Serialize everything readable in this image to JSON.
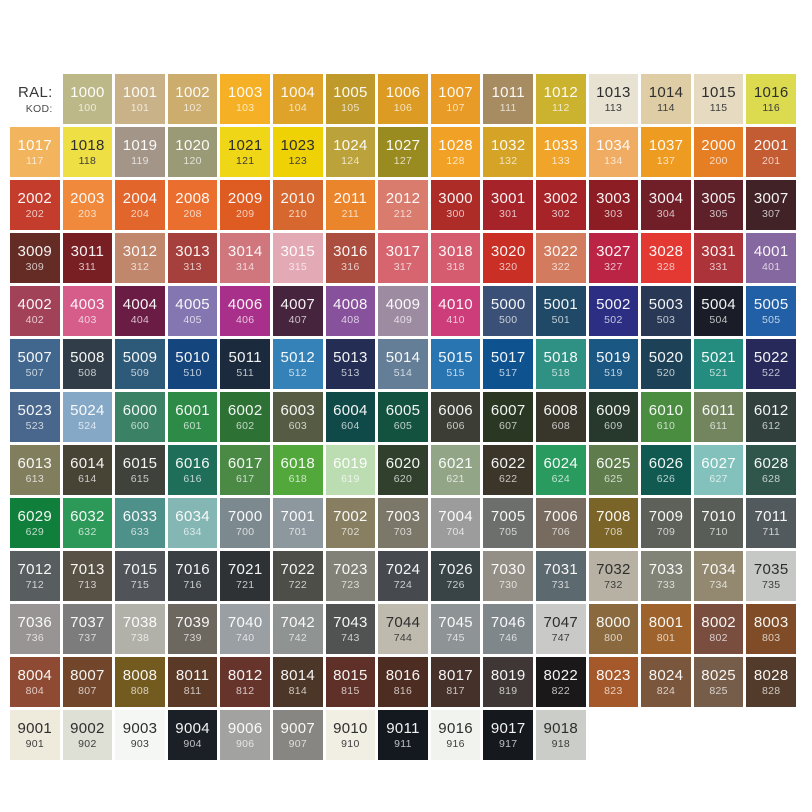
{
  "page": {
    "background": "#FFFFFF",
    "description": "RAL classic color chart with KOD codes"
  },
  "header": {
    "ral_label": "RAL:",
    "kod_label": "KOD:"
  },
  "text_colors": {
    "light": "#FFFFFF",
    "dark": "#2E2E2E"
  },
  "grid": {
    "columns": 15,
    "cells": [
      {
        "ral": "1000",
        "kod": "100",
        "hex": "#BDB888"
      },
      {
        "ral": "1001",
        "kod": "101",
        "hex": "#C9B287"
      },
      {
        "ral": "1002",
        "kod": "102",
        "hex": "#CCAD6E"
      },
      {
        "ral": "1003",
        "kod": "103",
        "hex": "#F5B025"
      },
      {
        "ral": "1004",
        "kod": "104",
        "hex": "#DFA32A"
      },
      {
        "ral": "1005",
        "kod": "105",
        "hex": "#C0992B"
      },
      {
        "ral": "1006",
        "kod": "106",
        "hex": "#DC9B22"
      },
      {
        "ral": "1007",
        "kod": "107",
        "hex": "#E89C27"
      },
      {
        "ral": "1011",
        "kod": "111",
        "hex": "#A78B61"
      },
      {
        "ral": "1012",
        "kod": "112",
        "hex": "#CBB32F"
      },
      {
        "ral": "1013",
        "kod": "113",
        "hex": "#E7E2D2",
        "dark": true
      },
      {
        "ral": "1014",
        "kod": "114",
        "hex": "#DECDA5",
        "dark": true
      },
      {
        "ral": "1015",
        "kod": "115",
        "hex": "#E6DAC0",
        "dark": true
      },
      {
        "ral": "1016",
        "kod": "116",
        "hex": "#DCDB50",
        "dark": true
      },
      {
        "ral": "1017",
        "kod": "117",
        "hex": "#F2B45C"
      },
      {
        "ral": "1018",
        "kod": "118",
        "hex": "#EEDF45",
        "dark": true
      },
      {
        "ral": "1019",
        "kod": "119",
        "hex": "#A39587"
      },
      {
        "ral": "1020",
        "kod": "120",
        "hex": "#9A9B76"
      },
      {
        "ral": "1021",
        "kod": "121",
        "hex": "#EFD616",
        "dark": true
      },
      {
        "ral": "1023",
        "kod": "123",
        "hex": "#EFD205",
        "dark": true
      },
      {
        "ral": "1024",
        "kod": "124",
        "hex": "#BCA23B"
      },
      {
        "ral": "1027",
        "kod": "127",
        "hex": "#9A8B20"
      },
      {
        "ral": "1028",
        "kod": "128",
        "hex": "#F2A127"
      },
      {
        "ral": "1032",
        "kod": "132",
        "hex": "#D5A326"
      },
      {
        "ral": "1033",
        "kod": "133",
        "hex": "#F0A42A"
      },
      {
        "ral": "1034",
        "kod": "134",
        "hex": "#F0AC62"
      },
      {
        "ral": "1037",
        "kod": "137",
        "hex": "#EE9C21"
      },
      {
        "ral": "2000",
        "kod": "200",
        "hex": "#E67E24"
      },
      {
        "ral": "2001",
        "kod": "201",
        "hex": "#C45C33"
      },
      {
        "ral": "2002",
        "kod": "202",
        "hex": "#C43C2C"
      },
      {
        "ral": "2003",
        "kod": "203",
        "hex": "#F1893C"
      },
      {
        "ral": "2004",
        "kod": "204",
        "hex": "#E2652C"
      },
      {
        "ral": "2008",
        "kod": "208",
        "hex": "#EA6E2E"
      },
      {
        "ral": "2009",
        "kod": "209",
        "hex": "#DE5B21"
      },
      {
        "ral": "2010",
        "kod": "210",
        "hex": "#D6682F"
      },
      {
        "ral": "2011",
        "kod": "211",
        "hex": "#EA852B"
      },
      {
        "ral": "2012",
        "kod": "212",
        "hex": "#DA7C6D"
      },
      {
        "ral": "3000",
        "kod": "300",
        "hex": "#AD2C28"
      },
      {
        "ral": "3001",
        "kod": "301",
        "hex": "#A52329"
      },
      {
        "ral": "3002",
        "kod": "302",
        "hex": "#A62327"
      },
      {
        "ral": "3003",
        "kod": "303",
        "hex": "#8C1D24"
      },
      {
        "ral": "3004",
        "kod": "304",
        "hex": "#701F29"
      },
      {
        "ral": "3005",
        "kod": "305",
        "hex": "#5E2129"
      },
      {
        "ral": "3007",
        "kod": "307",
        "hex": "#412327"
      },
      {
        "ral": "3009",
        "kod": "309",
        "hex": "#652C25"
      },
      {
        "ral": "3011",
        "kod": "311",
        "hex": "#781F23"
      },
      {
        "ral": "3012",
        "kod": "312",
        "hex": "#C1876C"
      },
      {
        "ral": "3013",
        "kod": "313",
        "hex": "#A6403C"
      },
      {
        "ral": "3014",
        "kod": "314",
        "hex": "#D0767D"
      },
      {
        "ral": "3015",
        "kod": "315",
        "hex": "#E3A9B5"
      },
      {
        "ral": "3016",
        "kod": "316",
        "hex": "#AB4E3F"
      },
      {
        "ral": "3017",
        "kod": "317",
        "hex": "#D6656F"
      },
      {
        "ral": "3018",
        "kod": "318",
        "hex": "#D45C6E"
      },
      {
        "ral": "3020",
        "kod": "320",
        "hex": "#C92F24"
      },
      {
        "ral": "3022",
        "kod": "322",
        "hex": "#D37B5F"
      },
      {
        "ral": "3027",
        "kod": "327",
        "hex": "#BC2446"
      },
      {
        "ral": "3028",
        "kod": "328",
        "hex": "#E43833"
      },
      {
        "ral": "3031",
        "kod": "331",
        "hex": "#AC3339"
      },
      {
        "ral": "4001",
        "kod": "401",
        "hex": "#8668A0"
      },
      {
        "ral": "4002",
        "kod": "402",
        "hex": "#A24259"
      },
      {
        "ral": "4003",
        "kod": "403",
        "hex": "#D65C8A"
      },
      {
        "ral": "4004",
        "kod": "404",
        "hex": "#6A1C45"
      },
      {
        "ral": "4005",
        "kod": "405",
        "hex": "#8477B1"
      },
      {
        "ral": "4006",
        "kod": "406",
        "hex": "#A8308A"
      },
      {
        "ral": "4007",
        "kod": "407",
        "hex": "#47243D"
      },
      {
        "ral": "4008",
        "kod": "408",
        "hex": "#87519C"
      },
      {
        "ral": "4009",
        "kod": "409",
        "hex": "#9D8BA2"
      },
      {
        "ral": "4010",
        "kod": "410",
        "hex": "#CC3D7A"
      },
      {
        "ral": "5000",
        "kod": "500",
        "hex": "#3A5077"
      },
      {
        "ral": "5001",
        "kod": "501",
        "hex": "#1F4966"
      },
      {
        "ral": "5002",
        "kod": "502",
        "hex": "#2B2E83"
      },
      {
        "ral": "5003",
        "kod": "503",
        "hex": "#293855"
      },
      {
        "ral": "5004",
        "kod": "504",
        "hex": "#1A1D28"
      },
      {
        "ral": "5005",
        "kod": "505",
        "hex": "#2160A7"
      },
      {
        "ral": "5007",
        "kod": "507",
        "hex": "#42678E"
      },
      {
        "ral": "5008",
        "kod": "508",
        "hex": "#313D48"
      },
      {
        "ral": "5009",
        "kod": "509",
        "hex": "#2E5A79"
      },
      {
        "ral": "5010",
        "kod": "510",
        "hex": "#15457D"
      },
      {
        "ral": "5011",
        "kod": "511",
        "hex": "#1B2B3D"
      },
      {
        "ral": "5012",
        "kod": "512",
        "hex": "#3582B8"
      },
      {
        "ral": "5013",
        "kod": "513",
        "hex": "#242E54"
      },
      {
        "ral": "5014",
        "kod": "514",
        "hex": "#647E97"
      },
      {
        "ral": "5015",
        "kod": "515",
        "hex": "#2975B2"
      },
      {
        "ral": "5017",
        "kod": "517",
        "hex": "#0E5290"
      },
      {
        "ral": "5018",
        "kod": "518",
        "hex": "#2F9084"
      },
      {
        "ral": "5019",
        "kod": "519",
        "hex": "#1B5783"
      },
      {
        "ral": "5020",
        "kod": "520",
        "hex": "#1D4257"
      },
      {
        "ral": "5021",
        "kod": "521",
        "hex": "#258D7F"
      },
      {
        "ral": "5022",
        "kod": "522",
        "hex": "#28295B"
      },
      {
        "ral": "5023",
        "kod": "523",
        "hex": "#49678D"
      },
      {
        "ral": "5024",
        "kod": "524",
        "hex": "#85A8C6"
      },
      {
        "ral": "6000",
        "kod": "600",
        "hex": "#3A8165"
      },
      {
        "ral": "6001",
        "kod": "601",
        "hex": "#2E8B47"
      },
      {
        "ral": "6002",
        "kod": "602",
        "hex": "#2D7134"
      },
      {
        "ral": "6003",
        "kod": "603",
        "hex": "#555C43"
      },
      {
        "ral": "6004",
        "kod": "604",
        "hex": "#0F4A49"
      },
      {
        "ral": "6005",
        "kod": "605",
        "hex": "#13523F"
      },
      {
        "ral": "6006",
        "kod": "606",
        "hex": "#3C3D35"
      },
      {
        "ral": "6007",
        "kod": "607",
        "hex": "#293723"
      },
      {
        "ral": "6008",
        "kod": "608",
        "hex": "#38352B"
      },
      {
        "ral": "6009",
        "kod": "609",
        "hex": "#27392C"
      },
      {
        "ral": "6010",
        "kod": "610",
        "hex": "#4A8C40"
      },
      {
        "ral": "6011",
        "kod": "611",
        "hex": "#73855F"
      },
      {
        "ral": "6012",
        "kod": "612",
        "hex": "#31403C"
      },
      {
        "ral": "6013",
        "kod": "613",
        "hex": "#817E5E"
      },
      {
        "ral": "6014",
        "kod": "614",
        "hex": "#474335"
      },
      {
        "ral": "6015",
        "kod": "615",
        "hex": "#3E423B"
      },
      {
        "ral": "6016",
        "kod": "616",
        "hex": "#1E6E59"
      },
      {
        "ral": "6017",
        "kod": "617",
        "hex": "#4A8A44"
      },
      {
        "ral": "6018",
        "kod": "618",
        "hex": "#53A83B"
      },
      {
        "ral": "6019",
        "kod": "619",
        "hex": "#BCDCB2"
      },
      {
        "ral": "6020",
        "kod": "620",
        "hex": "#30402C"
      },
      {
        "ral": "6021",
        "kod": "621",
        "hex": "#92A687"
      },
      {
        "ral": "6022",
        "kod": "622",
        "hex": "#3B352A"
      },
      {
        "ral": "6024",
        "kod": "624",
        "hex": "#2A9B5F"
      },
      {
        "ral": "6025",
        "kod": "625",
        "hex": "#5F7C4D"
      },
      {
        "ral": "6026",
        "kod": "626",
        "hex": "#105A51"
      },
      {
        "ral": "6027",
        "kod": "627",
        "hex": "#83C2BC"
      },
      {
        "ral": "6028",
        "kod": "628",
        "hex": "#30554A"
      },
      {
        "ral": "6029",
        "kod": "629",
        "hex": "#117F3C"
      },
      {
        "ral": "6032",
        "kod": "632",
        "hex": "#2C9959"
      },
      {
        "ral": "6033",
        "kod": "633",
        "hex": "#4E908A"
      },
      {
        "ral": "6034",
        "kod": "634",
        "hex": "#84B6B3"
      },
      {
        "ral": "7000",
        "kod": "700",
        "hex": "#7C898F"
      },
      {
        "ral": "7001",
        "kod": "701",
        "hex": "#8D979E"
      },
      {
        "ral": "7002",
        "kod": "702",
        "hex": "#887F62"
      },
      {
        "ral": "7003",
        "kod": "703",
        "hex": "#7B7869"
      },
      {
        "ral": "7004",
        "kod": "704",
        "hex": "#9C9C9C"
      },
      {
        "ral": "7005",
        "kod": "705",
        "hex": "#6C6F6C"
      },
      {
        "ral": "7006",
        "kod": "706",
        "hex": "#776B5F"
      },
      {
        "ral": "7008",
        "kod": "708",
        "hex": "#7B6428"
      },
      {
        "ral": "7009",
        "kod": "709",
        "hex": "#5E6159"
      },
      {
        "ral": "7010",
        "kod": "710",
        "hex": "#595D57"
      },
      {
        "ral": "7011",
        "kod": "711",
        "hex": "#535A5E"
      },
      {
        "ral": "7012",
        "kod": "712",
        "hex": "#585E5F"
      },
      {
        "ral": "7013",
        "kod": "713",
        "hex": "#585145"
      },
      {
        "ral": "7015",
        "kod": "715",
        "hex": "#505459"
      },
      {
        "ral": "7016",
        "kod": "716",
        "hex": "#393F43"
      },
      {
        "ral": "7021",
        "kod": "721",
        "hex": "#2E3234"
      },
      {
        "ral": "7022",
        "kod": "722",
        "hex": "#4C4E47"
      },
      {
        "ral": "7023",
        "kod": "723",
        "hex": "#818177"
      },
      {
        "ral": "7024",
        "kod": "724",
        "hex": "#464A4F"
      },
      {
        "ral": "7026",
        "kod": "726",
        "hex": "#384446"
      },
      {
        "ral": "7030",
        "kod": "730",
        "hex": "#938F86"
      },
      {
        "ral": "7031",
        "kod": "731",
        "hex": "#5C696E"
      },
      {
        "ral": "7032",
        "kod": "732",
        "hex": "#B6B1A2",
        "dark": true
      },
      {
        "ral": "7033",
        "kod": "733",
        "hex": "#808375"
      },
      {
        "ral": "7034",
        "kod": "734",
        "hex": "#938970"
      },
      {
        "ral": "7035",
        "kod": "735",
        "hex": "#C6C8C5",
        "dark": true
      },
      {
        "ral": "7036",
        "kod": "736",
        "hex": "#989493"
      },
      {
        "ral": "7037",
        "kod": "737",
        "hex": "#7B7C7B"
      },
      {
        "ral": "7038",
        "kod": "738",
        "hex": "#B1B1AA"
      },
      {
        "ral": "7039",
        "kod": "739",
        "hex": "#6C675F"
      },
      {
        "ral": "7040",
        "kod": "740",
        "hex": "#999FA2"
      },
      {
        "ral": "7042",
        "kod": "742",
        "hex": "#8F9392"
      },
      {
        "ral": "7043",
        "kod": "743",
        "hex": "#505351"
      },
      {
        "ral": "7044",
        "kod": "744",
        "hex": "#BEBAAE",
        "dark": true
      },
      {
        "ral": "7045",
        "kod": "745",
        "hex": "#8E9396"
      },
      {
        "ral": "7046",
        "kod": "746",
        "hex": "#80878B"
      },
      {
        "ral": "7047",
        "kod": "747",
        "hex": "#C9C9C8",
        "dark": true
      },
      {
        "ral": "8000",
        "kod": "800",
        "hex": "#8A693F"
      },
      {
        "ral": "8001",
        "kod": "801",
        "hex": "#9E632C"
      },
      {
        "ral": "8002",
        "kod": "802",
        "hex": "#7A4E3F"
      },
      {
        "ral": "8003",
        "kod": "803",
        "hex": "#7F4C27"
      },
      {
        "ral": "8004",
        "kod": "804",
        "hex": "#8E4A32"
      },
      {
        "ral": "8007",
        "kod": "807",
        "hex": "#71462B"
      },
      {
        "ral": "8008",
        "kod": "808",
        "hex": "#735A1F"
      },
      {
        "ral": "8011",
        "kod": "811",
        "hex": "#5B3927"
      },
      {
        "ral": "8012",
        "kod": "812",
        "hex": "#67342C"
      },
      {
        "ral": "8014",
        "kod": "814",
        "hex": "#4B3627"
      },
      {
        "ral": "8015",
        "kod": "815",
        "hex": "#5F3027"
      },
      {
        "ral": "8016",
        "kod": "816",
        "hex": "#4D2C21"
      },
      {
        "ral": "8017",
        "kod": "817",
        "hex": "#45302A"
      },
      {
        "ral": "8019",
        "kod": "819",
        "hex": "#3E3736"
      },
      {
        "ral": "8022",
        "kod": "822",
        "hex": "#1B1819"
      },
      {
        "ral": "8023",
        "kod": "823",
        "hex": "#A5582A"
      },
      {
        "ral": "8024",
        "kod": "824",
        "hex": "#7A563D"
      },
      {
        "ral": "8025",
        "kod": "825",
        "hex": "#765D49"
      },
      {
        "ral": "8028",
        "kod": "828",
        "hex": "#523B2B"
      },
      {
        "ral": "9001",
        "kod": "901",
        "hex": "#EFEBDC",
        "dark": true
      },
      {
        "ral": "9002",
        "kod": "902",
        "hex": "#DEDFD5",
        "dark": true
      },
      {
        "ral": "9003",
        "kod": "903",
        "hex": "#F4F7F4",
        "dark": true
      },
      {
        "ral": "9004",
        "kod": "904",
        "hex": "#1B1F26"
      },
      {
        "ral": "9006",
        "kod": "906",
        "hex": "#A2A2A1"
      },
      {
        "ral": "9007",
        "kod": "907",
        "hex": "#878682"
      },
      {
        "ral": "9010",
        "kod": "910",
        "hex": "#F1EFE3",
        "dark": true
      },
      {
        "ral": "9011",
        "kod": "911",
        "hex": "#14181F"
      },
      {
        "ral": "9016",
        "kod": "916",
        "hex": "#F1F3EF",
        "dark": true
      },
      {
        "ral": "9017",
        "kod": "917",
        "hex": "#15181D"
      },
      {
        "ral": "9018",
        "kod": "918",
        "hex": "#CACDC8",
        "dark": true
      }
    ]
  }
}
